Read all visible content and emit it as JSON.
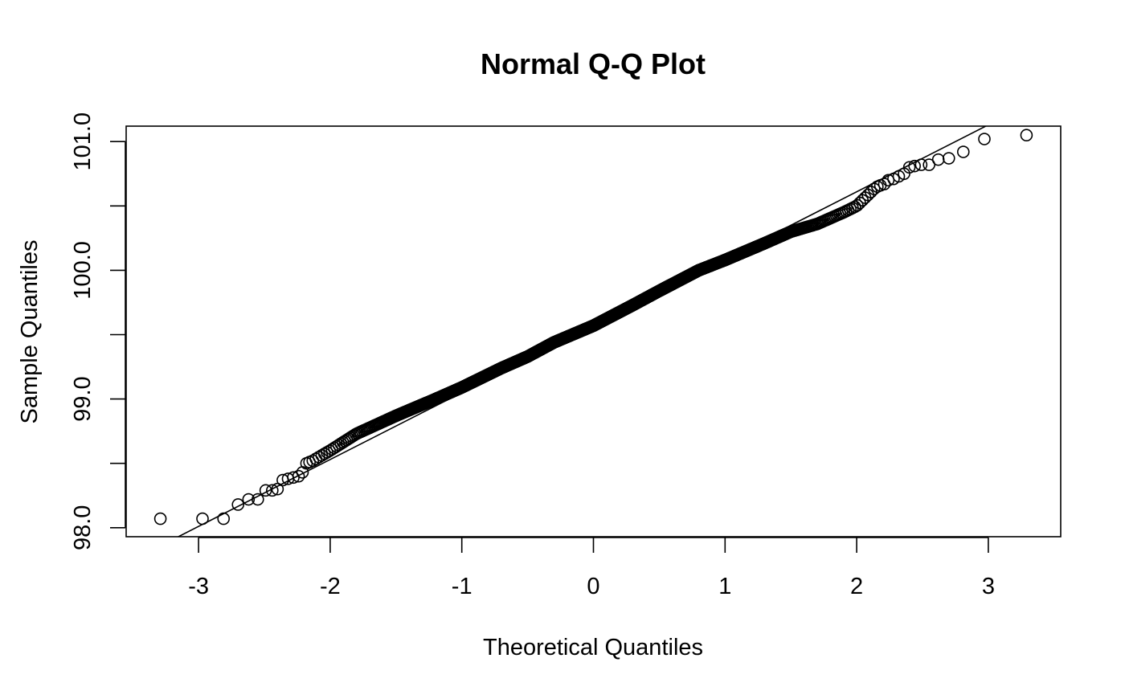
{
  "chart_data": {
    "type": "scatter",
    "title": "Normal Q-Q Plot",
    "xlabel": "Theoretical Quantiles",
    "ylabel": "Sample Quantiles",
    "xlim": [
      -3.55,
      3.55
    ],
    "ylim": [
      97.93,
      101.12
    ],
    "x_ticks": [
      -3,
      -2,
      -1,
      0,
      1,
      2,
      3
    ],
    "x_tick_labels": [
      "-3",
      "-2",
      "-1",
      "0",
      "1",
      "2",
      "3"
    ],
    "y_ticks": [
      98.0,
      98.5,
      99.0,
      99.5,
      100.0,
      100.5,
      101.0
    ],
    "y_tick_labels": [
      "98.0",
      "",
      "99.0",
      "",
      "100.0",
      "",
      "101.0"
    ],
    "reference_line": {
      "intercept": 99.57,
      "slope": 0.52
    },
    "n_points": 1000,
    "tail_points": [
      {
        "x": -3.29,
        "y": 98.07
      },
      {
        "x": -2.97,
        "y": 98.07
      },
      {
        "x": -2.81,
        "y": 98.07
      },
      {
        "x": -2.7,
        "y": 98.18
      },
      {
        "x": -2.62,
        "y": 98.22
      },
      {
        "x": -2.55,
        "y": 98.22
      },
      {
        "x": -2.49,
        "y": 98.29
      },
      {
        "x": -2.44,
        "y": 98.29
      },
      {
        "x": -2.4,
        "y": 98.3
      },
      {
        "x": -2.36,
        "y": 98.37
      },
      {
        "x": -2.32,
        "y": 98.38
      },
      {
        "x": -2.28,
        "y": 98.39
      },
      {
        "x": -2.24,
        "y": 98.4
      },
      {
        "x": -2.21,
        "y": 98.43
      },
      {
        "x": -2.18,
        "y": 98.5
      },
      {
        "x": 2.18,
        "y": 100.66
      },
      {
        "x": 2.21,
        "y": 100.67
      },
      {
        "x": 2.24,
        "y": 100.7
      },
      {
        "x": 2.28,
        "y": 100.71
      },
      {
        "x": 2.32,
        "y": 100.73
      },
      {
        "x": 2.36,
        "y": 100.75
      },
      {
        "x": 2.4,
        "y": 100.8
      },
      {
        "x": 2.44,
        "y": 100.81
      },
      {
        "x": 2.49,
        "y": 100.82
      },
      {
        "x": 2.55,
        "y": 100.82
      },
      {
        "x": 2.62,
        "y": 100.86
      },
      {
        "x": 2.7,
        "y": 100.87
      },
      {
        "x": 2.81,
        "y": 100.92
      },
      {
        "x": 2.97,
        "y": 101.02
      },
      {
        "x": 3.29,
        "y": 101.05
      }
    ],
    "body_curve": [
      {
        "x": -2.15,
        "y": 98.51
      },
      {
        "x": -2.0,
        "y": 98.6
      },
      {
        "x": -1.8,
        "y": 98.73
      },
      {
        "x": -1.5,
        "y": 98.87
      },
      {
        "x": -1.2,
        "y": 99.0
      },
      {
        "x": -1.0,
        "y": 99.09
      },
      {
        "x": -0.7,
        "y": 99.24
      },
      {
        "x": -0.5,
        "y": 99.33
      },
      {
        "x": -0.3,
        "y": 99.44
      },
      {
        "x": 0.0,
        "y": 99.57
      },
      {
        "x": 0.3,
        "y": 99.73
      },
      {
        "x": 0.5,
        "y": 99.84
      },
      {
        "x": 0.8,
        "y": 100.0
      },
      {
        "x": 1.0,
        "y": 100.08
      },
      {
        "x": 1.3,
        "y": 100.21
      },
      {
        "x": 1.5,
        "y": 100.3
      },
      {
        "x": 1.7,
        "y": 100.36
      },
      {
        "x": 1.9,
        "y": 100.45
      },
      {
        "x": 2.0,
        "y": 100.5
      },
      {
        "x": 2.1,
        "y": 100.6
      },
      {
        "x": 2.15,
        "y": 100.65
      }
    ]
  }
}
